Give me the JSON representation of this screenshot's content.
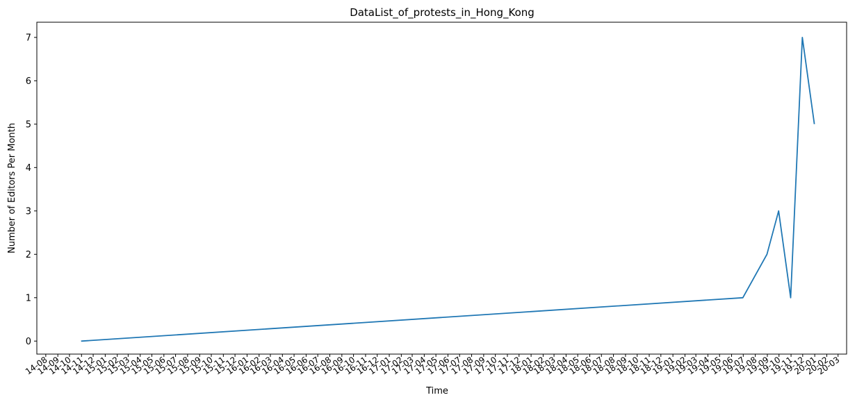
{
  "chart_data": {
    "type": "line",
    "title": "DataList_of_protests_in_Hong_Kong",
    "xlabel": "Time",
    "ylabel": "Number of Editors Per Month",
    "ylim": [
      -0.3,
      7.35
    ],
    "xlim": [
      "2014-07-09",
      "2020-03-23"
    ],
    "yticks": [
      0,
      1,
      2,
      3,
      4,
      5,
      6,
      7
    ],
    "xtick_labels": [
      "14-08",
      "14-09",
      "14-10",
      "14-11",
      "14-12",
      "15-01",
      "15-02",
      "15-03",
      "15-04",
      "15-05",
      "15-06",
      "15-07",
      "15-08",
      "15-09",
      "15-10",
      "15-11",
      "15-12",
      "16-01",
      "16-02",
      "16-03",
      "16-04",
      "16-05",
      "16-06",
      "16-07",
      "16-08",
      "16-09",
      "16-10",
      "16-11",
      "16-12",
      "17-01",
      "17-02",
      "17-03",
      "17-04",
      "17-05",
      "17-06",
      "17-07",
      "17-08",
      "17-09",
      "17-10",
      "17-11",
      "17-12",
      "18-01",
      "18-02",
      "18-03",
      "18-04",
      "18-05",
      "18-06",
      "18-07",
      "18-08",
      "18-09",
      "18-10",
      "18-11",
      "18-12",
      "19-01",
      "19-02",
      "19-03",
      "19-04",
      "19-05",
      "19-06",
      "19-07",
      "19-08",
      "19-09",
      "19-10",
      "19-11",
      "19-12",
      "20-01",
      "20-02",
      "20-03"
    ],
    "grid": false,
    "series": [
      {
        "color": "#1f77b4",
        "x": [
          "2014-10-31",
          "2019-06-30",
          "2019-08-31",
          "2019-09-30",
          "2019-10-31",
          "2019-11-30",
          "2019-12-31"
        ],
        "y": [
          0,
          1,
          2,
          3,
          1,
          7,
          5
        ]
      }
    ]
  }
}
